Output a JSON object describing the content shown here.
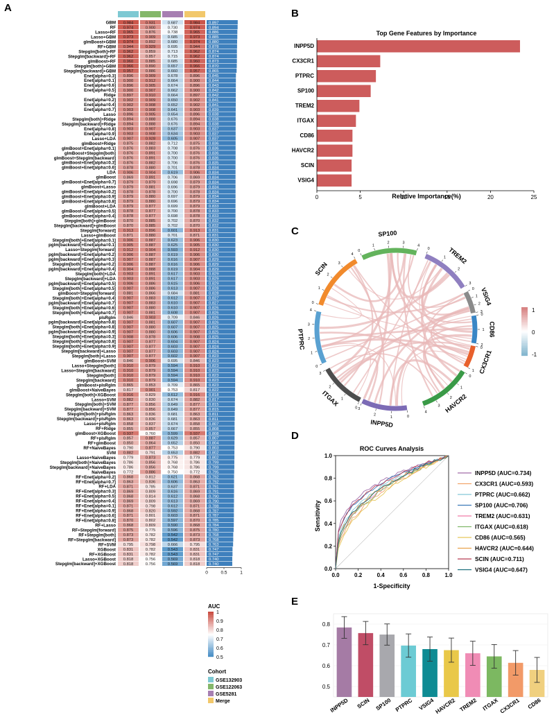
{
  "panels": {
    "a": "A",
    "b": "B",
    "c": "C",
    "d": "D",
    "e": "E"
  },
  "colors": {
    "cohort": [
      "#7ec9d3",
      "#84b76a",
      "#a77fb2",
      "#f2c86b"
    ],
    "heat_low": "#3c87c2",
    "heat_mid": "#ffffff",
    "heat_high": "#c94a3f",
    "bar_auc": "#3e80bd",
    "bar_b": "#cd5c5c",
    "chord_link": "#e8b8b8"
  },
  "panel_a": {
    "legend": {
      "auc_title": "AUC",
      "auc_ticks": [
        "1",
        "0.9",
        "0.8",
        "0.7",
        "0.6",
        "0.5"
      ],
      "cohort_title": "Cohort",
      "cohorts": [
        "GSE132903",
        "GSE122063",
        "GSE5281",
        "Merge"
      ]
    },
    "bar_axis_ticks": [
      "0",
      "0.5",
      "1"
    ],
    "models": [
      [
        "GBM",
        0.984,
        0.931,
        0.687,
        0.984,
        "0.897"
      ],
      [
        "RF",
        0.974,
        0.9,
        0.73,
        0.974,
        "0.894"
      ],
      [
        "Lasso+RF",
        0.965,
        0.876,
        0.738,
        0.965,
        "0.886"
      ],
      [
        "Lasso+GBM",
        0.973,
        0.909,
        0.685,
        0.973,
        "0.885"
      ],
      [
        "glmBoost+GBM",
        0.974,
        0.892,
        0.68,
        0.974,
        "0.880"
      ],
      [
        "RF+GBM",
        0.944,
        0.929,
        0.695,
        0.944,
        "0.878"
      ],
      [
        "Stepglm[both]+RF",
        0.962,
        0.859,
        0.713,
        0.962,
        "0.874"
      ],
      [
        "Stepglm[backward]+RF",
        0.962,
        0.857,
        0.715,
        0.962,
        "0.874"
      ],
      [
        "glmBoost+RF",
        0.96,
        0.885,
        0.685,
        0.96,
        "0.873"
      ],
      [
        "Stepglm[both]+GBM",
        0.966,
        0.89,
        0.657,
        0.966,
        "0.870"
      ],
      [
        "Stepglm[backward]+GBM",
        0.957,
        0.886,
        0.66,
        0.957,
        "0.865"
      ],
      [
        "Enet[alpha=0.3]",
        0.896,
        0.909,
        0.678,
        0.896,
        "0.845"
      ],
      [
        "Enet[alpha=0.1]",
        0.9,
        0.912,
        0.664,
        0.9,
        "0.844"
      ],
      [
        "Enet[alpha=0.6]",
        0.896,
        0.905,
        0.674,
        0.896,
        "0.843"
      ],
      [
        "Enet[alpha=0.5]",
        0.9,
        0.907,
        0.662,
        0.9,
        "0.842"
      ],
      [
        "Ridge",
        0.897,
        0.91,
        0.664,
        0.897,
        "0.842"
      ],
      [
        "Enet[alpha=0.2]",
        0.902,
        0.909,
        0.65,
        0.902,
        "0.841"
      ],
      [
        "Enet[alpha=0.4]",
        0.902,
        0.908,
        0.652,
        0.902,
        "0.841"
      ],
      [
        "Enet[alpha=0.7]",
        0.903,
        0.908,
        0.641,
        0.903,
        "0.839"
      ],
      [
        "Lasso",
        0.896,
        0.905,
        0.654,
        0.896,
        "0.838"
      ],
      [
        "Stepglm[both]+Ridge",
        0.894,
        0.888,
        0.676,
        0.894,
        "0.838"
      ],
      [
        "Stepglm[backward]+Ridge",
        0.894,
        0.888,
        0.676,
        0.894,
        "0.838"
      ],
      [
        "Enet[alpha=0.8]",
        0.903,
        0.907,
        0.637,
        0.903,
        "0.837"
      ],
      [
        "Enet[alpha=0.9]",
        0.903,
        0.908,
        0.634,
        0.903,
        "0.837"
      ],
      [
        "Lasso+LDA",
        0.907,
        0.928,
        0.605,
        0.907,
        "0.837"
      ],
      [
        "glmBoost+Ridge",
        0.875,
        0.882,
        0.712,
        0.875,
        "0.836"
      ],
      [
        "glmBoost+Enet[alpha=0.1]",
        0.876,
        0.883,
        0.708,
        0.876,
        "0.836"
      ],
      [
        "glmBoost+Stepglm[both]",
        0.876,
        0.891,
        0.7,
        0.876,
        "0.836"
      ],
      [
        "glmBoost+Stepglm[backward]",
        0.876,
        0.891,
        0.7,
        0.876,
        "0.836"
      ],
      [
        "glmBoost+Enet[alpha=0.3]",
        0.876,
        0.882,
        0.706,
        0.876,
        "0.835"
      ],
      [
        "glmBoost+Enet[alpha=0.6]",
        0.878,
        0.88,
        0.701,
        0.878,
        "0.834"
      ],
      [
        "LDA",
        0.906,
        0.904,
        0.619,
        0.906,
        "0.834"
      ],
      [
        "glmBoost",
        0.869,
        0.891,
        0.706,
        0.869,
        "0.834"
      ],
      [
        "glmBoost+Enet[alpha=0.7]",
        0.879,
        0.879,
        0.698,
        0.879,
        "0.834"
      ],
      [
        "glmBoost+Lasso",
        0.879,
        0.881,
        0.696,
        0.879,
        "0.834"
      ],
      [
        "glmBoost+Enet[alpha=0.2]",
        0.878,
        0.878,
        0.7,
        0.878,
        "0.834"
      ],
      [
        "glmBoost+Enet[alpha=0.9]",
        0.879,
        0.88,
        0.697,
        0.879,
        "0.834"
      ],
      [
        "glmBoost+Enet[alpha=0.8]",
        0.879,
        0.88,
        0.696,
        0.879,
        "0.834"
      ],
      [
        "glmBoost+LDA",
        0.879,
        0.877,
        0.699,
        0.879,
        "0.833"
      ],
      [
        "glmBoost+Enet[alpha=0.5]",
        0.878,
        0.877,
        0.7,
        0.878,
        "0.833"
      ],
      [
        "glmBoost+Enet[alpha=0.4]",
        0.878,
        0.877,
        0.698,
        0.878,
        "0.833"
      ],
      [
        "Stepglm[both]+glmBoost",
        0.87,
        0.885,
        0.702,
        0.87,
        "0.832"
      ],
      [
        "Stepglm[backward]+glmBoost",
        0.87,
        0.885,
        0.702,
        0.87,
        "0.832"
      ],
      [
        "Stepglm[forward]",
        0.913,
        0.896,
        0.601,
        0.913,
        "0.831"
      ],
      [
        "Lasso+glmBoost",
        0.871,
        0.88,
        0.701,
        0.871,
        "0.831"
      ],
      [
        "Stepglm[both]+Enet[alpha=0.1]",
        0.906,
        0.887,
        0.623,
        0.906,
        "0.830"
      ],
      [
        "pglm[backward]+Enet[alpha=0.1]",
        0.905,
        0.887,
        0.625,
        0.905,
        "0.830"
      ],
      [
        "Lasso+Stepglm[forward]",
        0.912,
        0.904,
        0.593,
        0.912,
        "0.830"
      ],
      [
        "pglm[backward]+Enet[alpha=0.2]",
        0.906,
        0.887,
        0.619,
        0.906,
        "0.830"
      ],
      [
        "pglm[backward]+Enet[alpha=0.3]",
        0.907,
        0.887,
        0.616,
        0.907,
        "0.829"
      ],
      [
        "Stepglm[both]+Enet[alpha=0.2]",
        0.906,
        0.887,
        0.616,
        0.906,
        "0.829"
      ],
      [
        "pglm[backward]+Enet[alpha=0.4]",
        0.904,
        0.888,
        0.619,
        0.904,
        "0.829"
      ],
      [
        "Stepglm[both]+LDA",
        0.903,
        0.891,
        0.617,
        0.903,
        "0.829"
      ],
      [
        "Stepglm[backward]+LDA",
        0.903,
        0.891,
        0.617,
        0.903,
        "0.829"
      ],
      [
        "pglm[backward]+Enet[alpha=0.5]",
        0.906,
        0.886,
        0.615,
        0.906,
        "0.829"
      ],
      [
        "Stepglm[both]+Enet[alpha=0.5]",
        0.907,
        0.886,
        0.613,
        0.907,
        "0.828"
      ],
      [
        "glmBoost+Stepglm[forward]",
        0.881,
        0.866,
        0.684,
        0.881,
        "0.828"
      ],
      [
        "Stepglm[both]+Enet[alpha=0.4]",
        0.907,
        0.883,
        0.612,
        0.907,
        "0.827"
      ],
      [
        "pglm[backward]+Enet[alpha=0.7]",
        0.907,
        0.883,
        0.61,
        0.907,
        "0.827"
      ],
      [
        "Stepglm[both]+Enet[alpha=0.6]",
        0.907,
        0.88,
        0.61,
        0.907,
        "0.826"
      ],
      [
        "Stepglm[both]+Enet[alpha=0.7]",
        0.907,
        0.881,
        0.608,
        0.907,
        "0.826"
      ],
      [
        "plsRglm",
        0.846,
        0.903,
        0.709,
        0.846,
        "0.826"
      ],
      [
        "pglm[backward]+Enet[alpha=0.8]",
        0.907,
        0.881,
        0.607,
        0.907,
        "0.826"
      ],
      [
        "Stepglm[both]+Enet[alpha=0.8]",
        0.907,
        0.88,
        0.607,
        0.907,
        "0.825"
      ],
      [
        "pglm[backward]+Enet[alpha=0.9]",
        0.907,
        0.88,
        0.606,
        0.907,
        "0.825"
      ],
      [
        "Stepglm[both]+Enet[alpha=0.3]",
        0.908,
        0.878,
        0.606,
        0.908,
        "0.825"
      ],
      [
        "Stepglm[both]+Enet[alpha=0.8]",
        0.907,
        0.877,
        0.604,
        0.907,
        "0.824"
      ],
      [
        "Stepglm[both]+Enet[alpha=0.9]",
        0.907,
        0.877,
        0.603,
        0.907,
        "0.824"
      ],
      [
        "Stepglm[backward]+Lasso",
        0.907,
        0.877,
        0.603,
        0.907,
        "0.824"
      ],
      [
        "Stepglm[both]+Lasso",
        0.907,
        0.877,
        0.602,
        0.907,
        "0.823"
      ],
      [
        "glmBoost+SVM",
        0.846,
        0.906,
        0.695,
        0.846,
        "0.823"
      ],
      [
        "Lasso+Stepglm[both]",
        0.91,
        0.879,
        0.594,
        0.91,
        "0.823"
      ],
      [
        "Lasso+Stepglm[backward]",
        0.91,
        0.879,
        0.594,
        0.91,
        "0.823"
      ],
      [
        "Stepglm[both]",
        0.91,
        0.879,
        0.594,
        0.91,
        "0.823"
      ],
      [
        "Stepglm[backward]",
        0.91,
        0.879,
        0.594,
        0.91,
        "0.823"
      ],
      [
        "glmBoost+plsRglm",
        0.865,
        0.853,
        0.709,
        0.865,
        "0.823"
      ],
      [
        "glmBoost+NaiveBayes",
        0.817,
        0.901,
        0.753,
        0.817,
        "0.822"
      ],
      [
        "Stepglm[both]+XGBoost",
        0.916,
        0.829,
        0.612,
        0.916,
        "0.818"
      ],
      [
        "Lasso+SVM",
        0.882,
        0.83,
        0.674,
        0.882,
        "0.817"
      ],
      [
        "Stepglm[both]+SVM",
        0.877,
        0.856,
        0.649,
        0.877,
        "0.815"
      ],
      [
        "Stepglm[backward]+SVM",
        0.877,
        0.856,
        0.649,
        0.877,
        "0.815"
      ],
      [
        "Stepglm[both]+plsRglm",
        0.863,
        0.836,
        0.681,
        0.863,
        "0.811"
      ],
      [
        "Stepglm[backward]+plsRglm",
        0.863,
        0.836,
        0.681,
        0.863,
        "0.811"
      ],
      [
        "Lasso+plsRglm",
        0.858,
        0.837,
        0.674,
        0.858,
        "0.807"
      ],
      [
        "RF+Ridge",
        0.855,
        0.857,
        0.667,
        0.855,
        "0.808"
      ],
      [
        "glmBoost+XGBoost",
        0.937,
        0.76,
        0.599,
        0.937,
        "0.808"
      ],
      [
        "RF+plsRglm",
        0.857,
        0.887,
        0.629,
        0.857,
        "0.807"
      ],
      [
        "RF+glmBoost",
        0.85,
        0.864,
        0.652,
        0.85,
        "0.804"
      ],
      [
        "RF+NaiveBayes",
        0.79,
        0.877,
        0.753,
        0.79,
        "0.803"
      ],
      [
        "SVM",
        0.882,
        0.791,
        0.653,
        0.882,
        "0.802"
      ],
      [
        "Lasso+NaiveBayes",
        0.779,
        0.873,
        0.775,
        0.779,
        "0.802"
      ],
      [
        "Stepglm[both]+NaiveBayes",
        0.786,
        0.856,
        0.768,
        0.786,
        "0.799"
      ],
      [
        "Stepglm[backward]+NaiveBayes",
        0.786,
        0.856,
        0.768,
        0.786,
        "0.799"
      ],
      [
        "NaiveBayes",
        0.772,
        0.886,
        0.75,
        0.772,
        "0.795"
      ],
      [
        "RF+Enet[alpha=0.2]",
        0.868,
        0.812,
        0.621,
        0.868,
        "0.792"
      ],
      [
        "RF+Enet[alpha=0.7]",
        0.863,
        0.836,
        0.606,
        0.863,
        "0.792"
      ],
      [
        "RF+LDA",
        0.871,
        0.785,
        0.637,
        0.871,
        "0.791"
      ],
      [
        "RF+Enet[alpha=0.3]",
        0.869,
        0.809,
        0.616,
        0.869,
        "0.791"
      ],
      [
        "RF+Enet[alpha=0.5]",
        0.868,
        0.814,
        0.612,
        0.868,
        "0.790"
      ],
      [
        "RF+Enet[alpha=0.4]",
        0.869,
        0.809,
        0.613,
        0.869,
        "0.790"
      ],
      [
        "RF+Enet[alpha=0.1]",
        0.871,
        0.798,
        0.612,
        0.871,
        "0.788"
      ],
      [
        "RF+Enet[alpha=0.9]",
        0.868,
        0.82,
        0.592,
        0.868,
        "0.787"
      ],
      [
        "RF+Enet[alpha=0.6]",
        0.871,
        0.801,
        0.603,
        0.871,
        "0.787"
      ],
      [
        "RF+Enet[alpha=0.8]",
        0.87,
        0.802,
        0.597,
        0.87,
        "0.785"
      ],
      [
        "RF+Lasso",
        0.868,
        0.809,
        0.59,
        0.868,
        "0.784"
      ],
      [
        "RF+Stepglm[forward]",
        0.875,
        0.775,
        0.596,
        0.875,
        "0.780"
      ],
      [
        "RF+Stepglm[both]",
        0.873,
        0.782,
        0.542,
        0.873,
        "0.768"
      ],
      [
        "RF+Stepglm[backward]",
        0.873,
        0.782,
        0.542,
        0.873,
        "0.768"
      ],
      [
        "RF+SVM",
        0.795,
        0.798,
        0.666,
        0.795,
        "0.763"
      ],
      [
        "XGBoost",
        0.831,
        0.782,
        0.543,
        0.831,
        "0.747"
      ],
      [
        "RF+XGBoost",
        0.831,
        0.782,
        0.543,
        0.831,
        "0.747"
      ],
      [
        "Lasso+XGBoost",
        0.818,
        0.756,
        0.569,
        0.818,
        "0.740"
      ],
      [
        "Stepglm[backward]+XGBoost",
        0.818,
        0.756,
        0.569,
        0.818,
        "0.740"
      ]
    ]
  },
  "panel_b": {
    "chart_data": {
      "type": "bar",
      "orientation": "horizontal",
      "title": "Top Gene Features by Importance",
      "xlabel": "Relative Importance(%)",
      "ylabel": "",
      "categories": [
        "INPP5D",
        "CX3CR1",
        "PTPRC",
        "SP100",
        "TREM2",
        "ITGAX",
        "CD86",
        "HAVCR2",
        "SCIN",
        "VSIG4"
      ],
      "values": [
        23.4,
        7.3,
        6.8,
        6.2,
        4.9,
        4.5,
        4.1,
        4.1,
        4.0,
        4.0
      ],
      "xlim": [
        0,
        25
      ],
      "xticks": [
        "0",
        "5",
        "10",
        "15",
        "20",
        "25"
      ]
    }
  },
  "panel_c": {
    "genes": [
      {
        "name": "CD86",
        "color": "#3a86c5",
        "start": 80,
        "end": 100,
        "ticks": [
          "0",
          "1",
          "2"
        ]
      },
      {
        "name": "CX3CR1",
        "color": "#e8602c",
        "start": 102,
        "end": 118,
        "ticks": [
          "0",
          "1"
        ]
      },
      {
        "name": "HAVCR2",
        "color": "#3a9a47",
        "start": 122,
        "end": 160,
        "ticks": [
          "0",
          "1",
          "2",
          "3",
          "4"
        ]
      },
      {
        "name": "INPP5D",
        "color": "#7c6bb5",
        "start": 172,
        "end": 205,
        "ticks": [
          "0",
          "1",
          "2",
          "3"
        ]
      },
      {
        "name": "ITGAX",
        "color": "#4d4d4d",
        "start": 207,
        "end": 240,
        "ticks": [
          "0",
          "1",
          "2",
          "3"
        ]
      },
      {
        "name": "PTPRC",
        "color": "#5aa1d1",
        "start": 245,
        "end": 283,
        "ticks": [
          "0",
          "1",
          "2",
          "3",
          "4"
        ]
      },
      {
        "name": "SCIN",
        "color": "#f18a2c",
        "start": 288,
        "end": 330,
        "ticks": [
          "0",
          "1",
          "2",
          "3",
          "4"
        ]
      },
      {
        "name": "SP100",
        "color": "#63b35c",
        "start": 335,
        "end": 375,
        "ticks": [
          "0",
          "1",
          "2",
          "3",
          "4"
        ]
      },
      {
        "name": "TREM2",
        "color": "#8f7fc0",
        "start": 22,
        "end": 58,
        "ticks": [
          "0",
          "1",
          "2",
          "3"
        ]
      },
      {
        "name": "VSIG4",
        "color": "#8a8a8a",
        "start": 62,
        "end": 78,
        "ticks": [
          "0",
          "1",
          "2",
          "3"
        ]
      }
    ],
    "legend_ticks": [
      "1",
      "0",
      "-1"
    ]
  },
  "panel_d": {
    "chart_data": {
      "type": "line",
      "title": "ROC Curves Analysis",
      "xlabel": "1-Specificity",
      "ylabel": "Sensitivity",
      "xlim": [
        0,
        1
      ],
      "ylim": [
        0,
        1
      ],
      "ticks": [
        "0.0",
        "0.2",
        "0.4",
        "0.6",
        "0.8",
        "1.0"
      ],
      "series": [
        {
          "name": "INPP5D (AUC=0.734)",
          "color": "#a06aa8"
        },
        {
          "name": "CX3CR1 (AUC=0.593)",
          "color": "#f2a56b"
        },
        {
          "name": "PTPRC (AUC=0.662)",
          "color": "#84c7d6"
        },
        {
          "name": "SP100 (AUC=0.706)",
          "color": "#3a79b8"
        },
        {
          "name": "TREM2 (AUC=0.631)",
          "color": "#f07aa8"
        },
        {
          "name": "ITGAX (AUC=0.618)",
          "color": "#7fb86a"
        },
        {
          "name": "CD86 (AUC=0.565)",
          "color": "#e6c75a"
        },
        {
          "name": "HAVCR2 (AUC=0.644)",
          "color": "#e9a24d"
        },
        {
          "name": "SCIN (AUC=0.711)",
          "color": "#b83a52"
        },
        {
          "name": "VSIG4 (AUC=0.647)",
          "color": "#1e6f7e"
        }
      ]
    }
  },
  "panel_e": {
    "chart_data": {
      "type": "bar",
      "categories": [
        "INPP5D",
        "SCIN",
        "SP100",
        "PTPRC",
        "VSIG4",
        "HAVCR2",
        "TREM2",
        "ITGAX",
        "CX3CR1",
        "CD86"
      ],
      "values": [
        0.784,
        0.757,
        0.75,
        0.697,
        0.68,
        0.675,
        0.66,
        0.645,
        0.614,
        0.58
      ],
      "errors": [
        0.052,
        0.056,
        0.051,
        0.056,
        0.058,
        0.058,
        0.058,
        0.057,
        0.059,
        0.06
      ],
      "colors": [
        "#a57ba5",
        "#c04d66",
        "#a8a8ad",
        "#6ccbd4",
        "#0e8b93",
        "#e9c849",
        "#f08cb5",
        "#7cb861",
        "#f29a68",
        "#f0d07f"
      ],
      "ylim": [
        0.45,
        0.85
      ],
      "yticks": [
        "0.5",
        "0.6",
        "0.7",
        "0.8"
      ],
      "title": "",
      "xlabel": "",
      "ylabel": ""
    }
  }
}
